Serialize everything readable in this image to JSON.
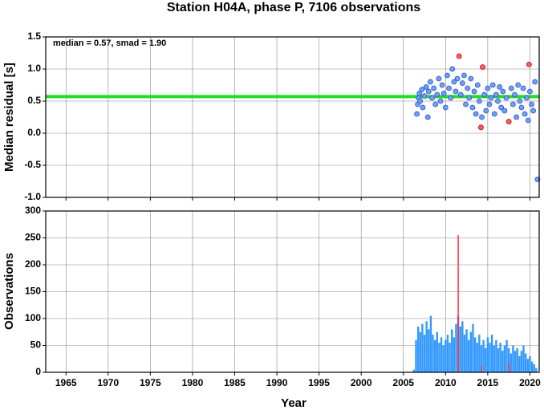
{
  "chart_data": [
    {
      "type": "scatter",
      "title": "Station H04A, phase P, 7106 observations",
      "ylabel": "Median residual [s]",
      "annotation": "median = 0.57, smad = 1.90",
      "hline": 0.57,
      "hline_color": "#22dd22",
      "xlim": [
        1962.6,
        2021.1
      ],
      "xticks": [
        1965,
        1970,
        1975,
        1980,
        1985,
        1990,
        1995,
        2000,
        2005,
        2010,
        2015,
        2020
      ],
      "ylim": [
        -1.0,
        1.5
      ],
      "yticks": [
        1.5,
        {
          "value": 1.0,
          "label": "1.0"
        },
        0.5,
        {
          "value": 0.0,
          "label": "0.0"
        },
        -0.5,
        {
          "value": -1.0,
          "label": "-1.0"
        }
      ],
      "grid": true,
      "series": [
        {
          "color": "#6ea0f0",
          "x": [
            2006.6,
            2006.7,
            2006.8,
            2006.9,
            2007.0,
            2007.2,
            2007.3,
            2007.5,
            2007.7,
            2007.9,
            2008.0,
            2008.2,
            2008.4,
            2008.6,
            2008.8,
            2009.0,
            2009.2,
            2009.4,
            2009.6,
            2009.8,
            2010.0,
            2010.2,
            2010.4,
            2010.6,
            2010.8,
            2011.0,
            2011.2,
            2011.4,
            2011.8,
            2012.0,
            2012.2,
            2012.4,
            2012.6,
            2012.8,
            2013.0,
            2013.2,
            2013.4,
            2013.6,
            2013.8,
            2014.0,
            2014.3,
            2014.6,
            2014.8,
            2015.0,
            2015.2,
            2015.4,
            2015.6,
            2015.8,
            2016.0,
            2016.2,
            2016.4,
            2016.6,
            2016.8,
            2017.0,
            2017.2,
            2017.8,
            2018.0,
            2018.2,
            2018.4,
            2018.6,
            2018.8,
            2019.0,
            2019.2,
            2019.4,
            2019.6,
            2019.8,
            2020.0,
            2020.2,
            2020.4,
            2020.6,
            2020.9
          ],
          "values": [
            0.3,
            0.45,
            0.55,
            0.62,
            0.5,
            0.68,
            0.4,
            0.58,
            0.72,
            0.25,
            0.65,
            0.8,
            0.55,
            0.7,
            0.45,
            0.6,
            0.85,
            0.5,
            0.75,
            0.62,
            0.4,
            0.9,
            0.7,
            0.55,
            1.0,
            0.8,
            0.65,
            0.85,
            0.6,
            0.78,
            0.9,
            0.45,
            0.7,
            0.55,
            0.85,
            0.4,
            0.65,
            0.3,
            0.75,
            0.5,
            0.25,
            0.6,
            0.35,
            0.7,
            0.45,
            0.55,
            0.75,
            0.3,
            0.6,
            0.5,
            0.72,
            0.4,
            0.65,
            0.35,
            0.55,
            0.7,
            0.45,
            0.6,
            0.25,
            0.75,
            0.5,
            0.4,
            0.7,
            0.3,
            0.55,
            0.2,
            0.65,
            0.45,
            0.35,
            0.8,
            -0.72
          ]
        },
        {
          "color": "#ff6060",
          "x": [
            2011.6,
            2014.4,
            2014.2,
            2017.5,
            2019.9
          ],
          "values": [
            1.2,
            1.03,
            0.09,
            0.18,
            1.07
          ]
        }
      ]
    },
    {
      "type": "bar",
      "ylabel": "Observations",
      "xlabel": "Year",
      "xlim": [
        1962.6,
        2021.1
      ],
      "xticks": [
        1965,
        1970,
        1975,
        1980,
        1985,
        1990,
        1995,
        2000,
        2005,
        2010,
        2015,
        2020
      ],
      "ylim": [
        0,
        300
      ],
      "yticks": [
        0,
        50,
        100,
        150,
        200,
        250,
        300
      ],
      "grid": true,
      "series": [
        {
          "color": "#3399ff",
          "x": [
            2006.25,
            2006.5,
            2006.75,
            2007,
            2007.25,
            2007.5,
            2007.75,
            2008,
            2008.25,
            2008.5,
            2008.75,
            2009,
            2009.25,
            2009.5,
            2009.75,
            2010,
            2010.25,
            2010.5,
            2010.75,
            2011,
            2011.25,
            2011.5,
            2011.75,
            2012,
            2012.25,
            2012.5,
            2012.75,
            2013,
            2013.25,
            2013.5,
            2013.75,
            2014,
            2014.25,
            2014.5,
            2014.75,
            2015,
            2015.25,
            2015.5,
            2015.75,
            2016,
            2016.25,
            2016.5,
            2016.75,
            2017,
            2017.25,
            2017.5,
            2017.75,
            2018,
            2018.25,
            2018.5,
            2018.75,
            2019,
            2019.25,
            2019.5,
            2019.75,
            2020,
            2020.25,
            2020.5,
            2020.75
          ],
          "values": [
            5,
            60,
            85,
            75,
            90,
            70,
            95,
            80,
            105,
            70,
            60,
            75,
            55,
            65,
            50,
            60,
            70,
            55,
            80,
            65,
            90,
            105,
            85,
            95,
            70,
            80,
            60,
            75,
            90,
            65,
            55,
            70,
            50,
            60,
            45,
            65,
            55,
            70,
            50,
            60,
            45,
            55,
            40,
            50,
            60,
            45,
            35,
            50,
            40,
            45,
            30,
            40,
            50,
            35,
            25,
            30,
            20,
            15,
            8
          ]
        },
        {
          "color": "#ff3030",
          "x": [
            2011.5,
            2014.25,
            2017.5
          ],
          "values": [
            255,
            12,
            18
          ]
        }
      ]
    }
  ]
}
